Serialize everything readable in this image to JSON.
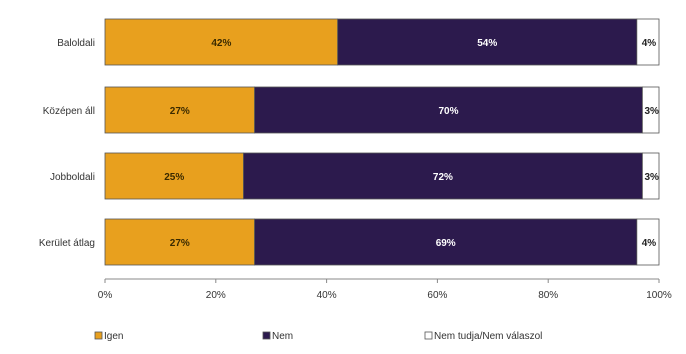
{
  "chart_data": {
    "type": "bar",
    "orientation": "horizontal",
    "stacked": true,
    "normalized_percent": true,
    "categories": [
      "Baloldali",
      "Középen áll",
      "Jobboldali",
      "Kerület átlag"
    ],
    "series": [
      {
        "name": "Igen",
        "values": [
          42,
          27,
          25,
          27
        ],
        "labels": [
          "42%",
          "27%",
          "25%",
          "27%"
        ],
        "color": "#E8A01E",
        "label_color": "#3a2a00"
      },
      {
        "name": "Nem",
        "values": [
          54,
          70,
          72,
          69
        ],
        "labels": [
          "54%",
          "70%",
          "72%",
          "69%"
        ],
        "color": "#2C1A4D",
        "label_color": "#ffffff"
      },
      {
        "name": "Nem tudja/Nem válaszol",
        "values": [
          4,
          3,
          3,
          4
        ],
        "labels": [
          "4%",
          "3%",
          "3%",
          "4%"
        ],
        "color": "#FFFFFF",
        "label_color": "#222222"
      }
    ],
    "xlim": [
      0,
      100
    ],
    "x_ticks": [
      "0%",
      "20%",
      "40%",
      "60%",
      "80%",
      "100%"
    ],
    "x_tick_values": [
      0,
      20,
      40,
      60,
      80,
      100
    ],
    "legend_position": "bottom",
    "grid": false
  }
}
